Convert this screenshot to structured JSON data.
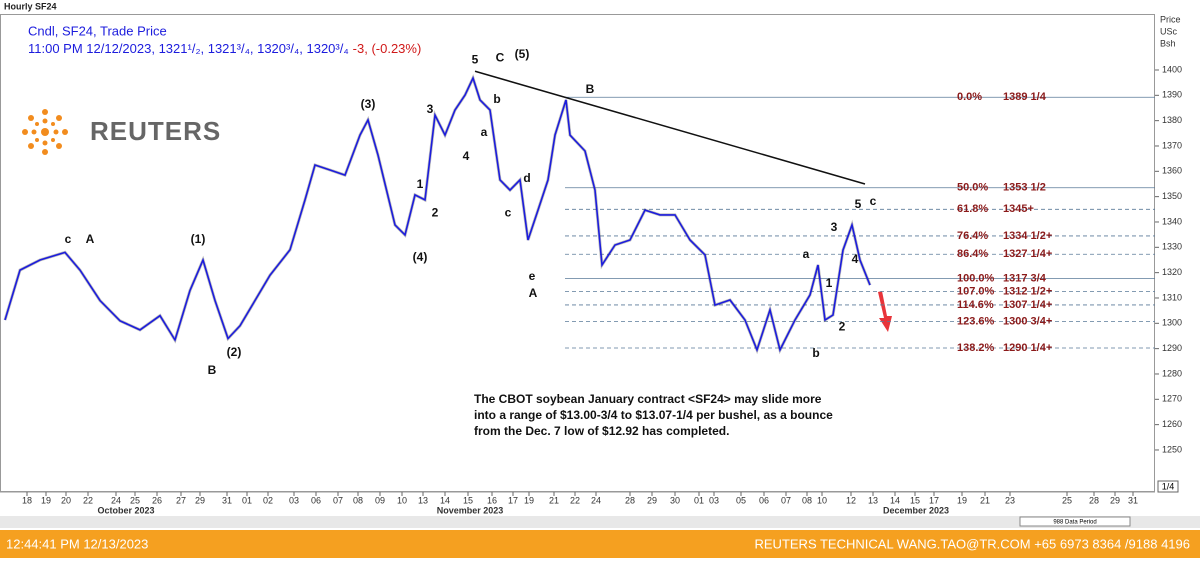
{
  "header": {
    "title": "Hourly SF24",
    "line1": "Cndl, SF24, Trade Price",
    "line2": "11:00 PM 12/12/2023, 1321¹/₂, 1321³/₄, 1320³/₄, 1320³/₄",
    "line2_change": "-3, (-0.23%)",
    "logo": "REUTERS",
    "axis_head": [
      "Price",
      "USc",
      "Bsh"
    ]
  },
  "chart_data": {
    "type": "line",
    "color": "#1c1cdd",
    "x": [
      0,
      15,
      35,
      60,
      75,
      95,
      115,
      135,
      155,
      170,
      185,
      198,
      210,
      223,
      235,
      250,
      265,
      285,
      300,
      310,
      325,
      340,
      355,
      363,
      373,
      390,
      400,
      410,
      420,
      430,
      440,
      450,
      460,
      468,
      475,
      485,
      495,
      505,
      515,
      523,
      533,
      543,
      550,
      561,
      565,
      580,
      590,
      597,
      610,
      625,
      640,
      655,
      670,
      685,
      700,
      710,
      725,
      740,
      752,
      765,
      775,
      790,
      805,
      813,
      820,
      828,
      838,
      847,
      855,
      865
    ],
    "values": [
      1301.3,
      1321,
      1325,
      1328,
      1321,
      1309,
      1301,
      1297.4,
      1303,
      1293.4,
      1313,
      1325,
      1309,
      1294,
      1299,
      1309,
      1319,
      1329,
      1348.7,
      1362.5,
      1360.5,
      1358.5,
      1374.3,
      1380.3,
      1366.4,
      1338.8,
      1334.9,
      1350.7,
      1348.7,
      1382.2,
      1374.3,
      1384.2,
      1390.1,
      1396.8,
      1388.2,
      1384.2,
      1356.6,
      1352.6,
      1356.6,
      1332.9,
      1344.7,
      1356.6,
      1374.3,
      1388.2,
      1374.3,
      1368,
      1352.6,
      1323,
      1330.9,
      1332.9,
      1344.7,
      1342.8,
      1342.8,
      1332.9,
      1327,
      1307.2,
      1309.2,
      1301.3,
      1289.5,
      1305.3,
      1289.5,
      1301.3,
      1311.2,
      1323,
      1301.3,
      1303.3,
      1328.9,
      1338.8,
      1325,
      1315.1
    ],
    "xlim": [
      0,
      1150
    ],
    "ylim": [
      1234.2,
      1422.1
    ],
    "yticks": [
      1250,
      1260,
      1270,
      1280,
      1290,
      1300,
      1310,
      1320,
      1330,
      1340,
      1350,
      1360,
      1370,
      1380,
      1390,
      1400
    ],
    "xticks": [
      {
        "value": 22,
        "label": "18"
      },
      {
        "value": 41,
        "label": "19"
      },
      {
        "value": 61,
        "label": "20"
      },
      {
        "value": 83,
        "label": "22"
      },
      {
        "value": 111,
        "label": "24"
      },
      {
        "value": 130,
        "label": "25"
      },
      {
        "value": 152,
        "label": "26"
      },
      {
        "value": 176,
        "label": "27"
      },
      {
        "value": 195,
        "label": "29"
      },
      {
        "value": 222,
        "label": "31"
      },
      {
        "value": 242,
        "label": "01"
      },
      {
        "value": 263,
        "label": "02"
      },
      {
        "value": 289,
        "label": "03"
      },
      {
        "value": 311,
        "label": "06"
      },
      {
        "value": 333,
        "label": "07"
      },
      {
        "value": 353,
        "label": "08"
      },
      {
        "value": 375,
        "label": "09"
      },
      {
        "value": 397,
        "label": "10"
      },
      {
        "value": 418,
        "label": "13"
      },
      {
        "value": 440,
        "label": "14"
      },
      {
        "value": 463,
        "label": "15"
      },
      {
        "value": 487,
        "label": "16"
      },
      {
        "value": 508,
        "label": "17"
      },
      {
        "value": 524,
        "label": "19"
      },
      {
        "value": 549,
        "label": "21"
      },
      {
        "value": 570,
        "label": "22"
      },
      {
        "value": 591,
        "label": "24"
      },
      {
        "value": 625,
        "label": "28"
      },
      {
        "value": 647,
        "label": "29"
      },
      {
        "value": 670,
        "label": "30"
      },
      {
        "value": 694,
        "label": "01"
      },
      {
        "value": 709,
        "label": "03"
      },
      {
        "value": 736,
        "label": "05"
      },
      {
        "value": 759,
        "label": "06"
      },
      {
        "value": 781,
        "label": "07"
      },
      {
        "value": 802,
        "label": "08"
      },
      {
        "value": 817,
        "label": "10"
      },
      {
        "value": 846,
        "label": "12"
      },
      {
        "value": 868,
        "label": "13"
      },
      {
        "value": 890,
        "label": "14"
      },
      {
        "value": 910,
        "label": "15"
      },
      {
        "value": 929,
        "label": "17"
      },
      {
        "value": 957,
        "label": "19"
      },
      {
        "value": 980,
        "label": "21"
      },
      {
        "value": 1005,
        "label": "23"
      },
      {
        "value": 1062,
        "label": "25"
      },
      {
        "value": 1089,
        "label": "28"
      },
      {
        "value": 1110,
        "label": "29"
      },
      {
        "value": 1128,
        "label": "31"
      }
    ],
    "months": [
      {
        "x": 121,
        "label": "October 2023"
      },
      {
        "x": 465,
        "label": "November 2023"
      },
      {
        "x": 911,
        "label": "December 2023"
      }
    ],
    "trendline": {
      "x": [
        470,
        860
      ],
      "y": [
        1399.5,
        1355
      ]
    },
    "levels": [
      {
        "pct": "0.0%",
        "label": "1389 1/4",
        "value": 1389.25,
        "dashed": false
      },
      {
        "pct": "50.0%",
        "label": "1353 1/2",
        "value": 1353.5,
        "dashed": false
      },
      {
        "pct": "61.8%",
        "label": "1345+",
        "value": 1345,
        "dashed": true
      },
      {
        "pct": "76.4%",
        "label": "1334 1/2+",
        "value": 1334.5,
        "dashed": true
      },
      {
        "pct": "86.4%",
        "label": "1327 1/4+",
        "value": 1327.25,
        "dashed": true
      },
      {
        "pct": "100.0%",
        "label": "1317 3/4",
        "value": 1317.75,
        "dashed": false
      },
      {
        "pct": "107.0%",
        "label": "1312 1/2+",
        "value": 1312.5,
        "dashed": true
      },
      {
        "pct": "114.6%",
        "label": "1307 1/4+",
        "value": 1307.25,
        "dashed": true
      },
      {
        "pct": "123.6%",
        "label": "1300 3/4+",
        "value": 1300.75,
        "dashed": true
      },
      {
        "pct": "138.2%",
        "label": "1290 1/4+",
        "value": 1290.25,
        "dashed": true
      }
    ],
    "annotations": [
      {
        "text": "c",
        "x": 63,
        "y": 1332.9
      },
      {
        "text": "A",
        "x": 85,
        "y": 1332.9
      },
      {
        "text": "(1)",
        "x": 193,
        "y": 1332.9
      },
      {
        "text": "(2)",
        "x": 229,
        "y": 1288.3
      },
      {
        "text": "B",
        "x": 207,
        "y": 1281.2
      },
      {
        "text": "(3)",
        "x": 363,
        "y": 1386.2
      },
      {
        "text": "3",
        "x": 425,
        "y": 1384.2
      },
      {
        "text": "1",
        "x": 415,
        "y": 1354.6
      },
      {
        "text": "2",
        "x": 430,
        "y": 1343.5
      },
      {
        "text": "(4)",
        "x": 415,
        "y": 1325.8
      },
      {
        "text": "4",
        "x": 461,
        "y": 1365.7
      },
      {
        "text": "5",
        "x": 470,
        "y": 1403.9
      },
      {
        "text": "C",
        "x": 495,
        "y": 1404.7
      },
      {
        "text": "(5)",
        "x": 517,
        "y": 1405.9
      },
      {
        "text": "b",
        "x": 492,
        "y": 1388.2
      },
      {
        "text": "a",
        "x": 479,
        "y": 1375.1
      },
      {
        "text": "d",
        "x": 522,
        "y": 1357
      },
      {
        "text": "c",
        "x": 503,
        "y": 1343.5
      },
      {
        "text": "e",
        "x": 527,
        "y": 1318.3
      },
      {
        "text": "A",
        "x": 528,
        "y": 1311.6
      },
      {
        "text": "B",
        "x": 585,
        "y": 1392.1
      },
      {
        "text": "5",
        "x": 853,
        "y": 1346.7
      },
      {
        "text": "c",
        "x": 868,
        "y": 1347.9
      },
      {
        "text": "3",
        "x": 829,
        "y": 1337.6
      },
      {
        "text": "4",
        "x": 850,
        "y": 1325
      },
      {
        "text": "a",
        "x": 801,
        "y": 1327
      },
      {
        "text": "1",
        "x": 824,
        "y": 1315.5
      },
      {
        "text": "2",
        "x": 837,
        "y": 1298.5
      },
      {
        "text": "b",
        "x": 811,
        "y": 1287.9
      }
    ],
    "comment": [
      "The CBOT soybean January contract <SF24> may slide more",
      " into a range of $13.00-3/4 to $13.07-1/4 per bushel, as a bounce",
      "from the Dec. 7 low of $12.92 has completed."
    ],
    "scale_box": "1/4",
    "data_period": "988 Data Period"
  },
  "footer": {
    "time": "12:44:41 PM 12/13/2023",
    "contact": "REUTERS TECHNICAL  WANG.TAO@TR.COM  +65 6973 8364 /9188 4196"
  }
}
